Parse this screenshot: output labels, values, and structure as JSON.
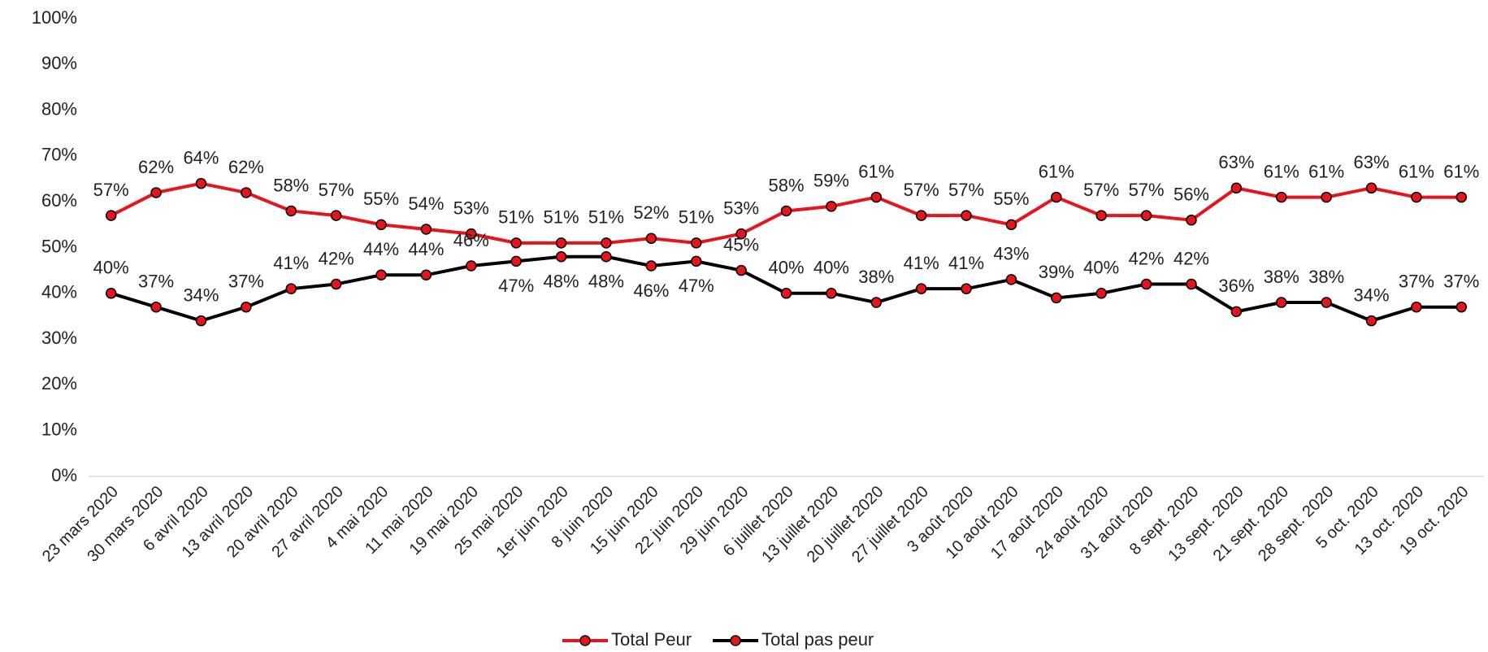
{
  "chart_data": {
    "type": "line",
    "categories": [
      "23 mars 2020",
      "30 mars 2020",
      "6 avril 2020",
      "13 avril 2020",
      "20 avril 2020",
      "27 avril 2020",
      "4 mai 2020",
      "11 mai 2020",
      "19 mai 2020",
      "25 mai 2020",
      "1er juin 2020",
      "8 juin 2020",
      "15 juin 2020",
      "22 juin 2020",
      "29 juin 2020",
      "6 juillet 2020",
      "13 juillet 2020",
      "20 juillet 2020",
      "27 juillet 2020",
      "3 août 2020",
      "10 août 2020",
      "17 août 2020",
      "24 août 2020",
      "31 août 2020",
      "8 sept. 2020",
      "13 sept. 2020",
      "21 sept. 2020",
      "28 sept. 2020",
      "5 oct. 2020",
      "13 oct. 2020",
      "19 oct. 2020"
    ],
    "series": [
      {
        "name": "Total Peur",
        "color": "#e8141c",
        "values": [
          57,
          62,
          64,
          62,
          58,
          57,
          55,
          54,
          53,
          51,
          51,
          51,
          52,
          51,
          53,
          58,
          59,
          61,
          57,
          57,
          55,
          61,
          57,
          57,
          56,
          63,
          61,
          61,
          63,
          61,
          61
        ],
        "value_labels": [
          "57%",
          "62%",
          "64%",
          "62%",
          "58%",
          "57%",
          "55%",
          "54%",
          "53%",
          "51%",
          "51%",
          "51%",
          "52%",
          "51%",
          "53%",
          "58%",
          "59%",
          "61%",
          "57%",
          "57%",
          "55%",
          "61%",
          "57%",
          "57%",
          "56%",
          "63%",
          "61%",
          "61%",
          "63%",
          "61%",
          "61%"
        ]
      },
      {
        "name": "Total pas peur",
        "color": "#000000",
        "values": [
          40,
          37,
          34,
          37,
          41,
          42,
          44,
          44,
          46,
          47,
          48,
          48,
          46,
          47,
          45,
          40,
          40,
          38,
          41,
          41,
          43,
          39,
          40,
          42,
          42,
          36,
          38,
          38,
          34,
          37,
          37
        ],
        "value_labels": [
          "40%",
          "37%",
          "34%",
          "37%",
          "41%",
          "42%",
          "44%",
          "44%",
          "46%",
          "47%",
          "48%",
          "48%",
          "46%",
          "47%",
          "45%",
          "40%",
          "40%",
          "38%",
          "41%",
          "41%",
          "43%",
          "39%",
          "40%",
          "42%",
          "42%",
          "36%",
          "38%",
          "38%",
          "34%",
          "37%",
          "37%"
        ]
      }
    ],
    "ylim": [
      0,
      100
    ],
    "yticks": [
      {
        "value": 0,
        "label": "0%"
      },
      {
        "value": 10,
        "label": "10%"
      },
      {
        "value": 20,
        "label": "20%"
      },
      {
        "value": 30,
        "label": "30%"
      },
      {
        "value": 40,
        "label": "40%"
      },
      {
        "value": 50,
        "label": "50%"
      },
      {
        "value": 60,
        "label": "60%"
      },
      {
        "value": 70,
        "label": "70%"
      },
      {
        "value": 80,
        "label": "80%"
      },
      {
        "value": 90,
        "label": "90%"
      },
      {
        "value": 100,
        "label": "100%"
      }
    ],
    "legend": "bottom"
  }
}
